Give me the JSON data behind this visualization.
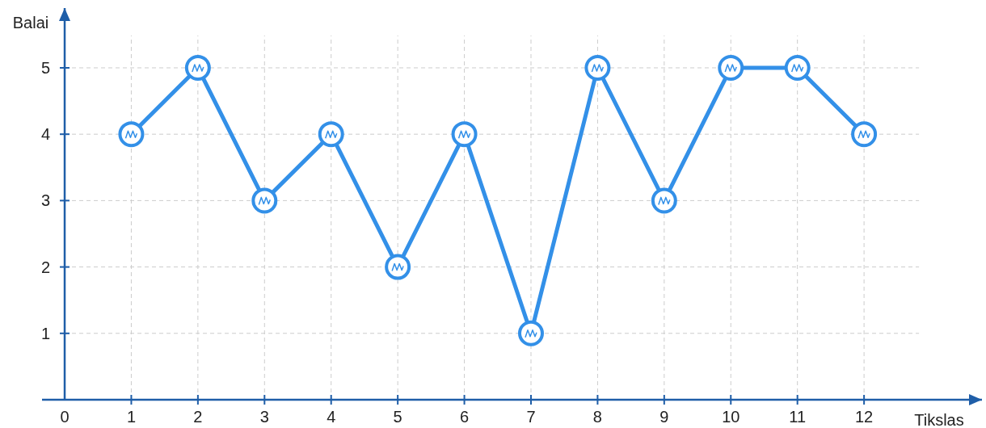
{
  "chart_data": {
    "type": "line",
    "xlabel": "Tikslas",
    "ylabel": "Balai",
    "x": [
      1,
      2,
      3,
      4,
      5,
      6,
      7,
      8,
      9,
      10,
      11,
      12
    ],
    "series": [
      {
        "color": "#3390e8",
        "values": [
          4,
          5,
          3,
          4,
          2,
          4,
          1,
          5,
          3,
          5,
          5,
          4
        ]
      }
    ],
    "xlim": [
      -0.34,
      13.77
    ],
    "ylim": [
      0,
      5.9
    ],
    "xticks": [
      0,
      1,
      2,
      3,
      4,
      5,
      6,
      7,
      8,
      9,
      10,
      11,
      12
    ],
    "yticks": [
      1,
      2,
      3,
      4,
      5
    ],
    "grid": true,
    "marker": "circle",
    "line_style": "solid"
  }
}
